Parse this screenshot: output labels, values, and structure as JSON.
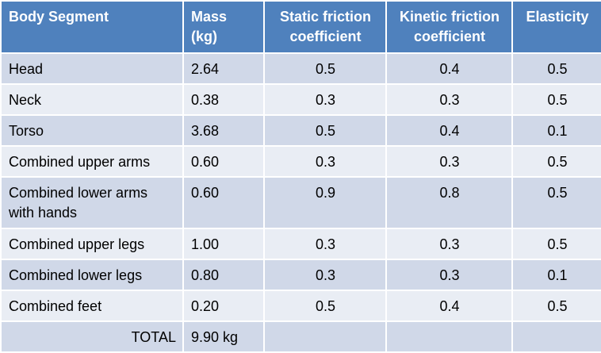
{
  "table": {
    "headers": {
      "segment": "Body Segment",
      "mass": "Mass (kg)",
      "static": "Static friction coefficient",
      "kinetic": "Kinetic friction coefficient",
      "elasticity": "Elasticity"
    },
    "rows": [
      {
        "segment": "Head",
        "mass": "2.64",
        "static": "0.5",
        "kinetic": "0.4",
        "elasticity": "0.5"
      },
      {
        "segment": "Neck",
        "mass": "0.38",
        "static": "0.3",
        "kinetic": "0.3",
        "elasticity": "0.5"
      },
      {
        "segment": "Torso",
        "mass": "3.68",
        "static": "0.5",
        "kinetic": "0.4",
        "elasticity": "0.1"
      },
      {
        "segment": "Combined upper arms",
        "mass": "0.60",
        "static": "0.3",
        "kinetic": "0.3",
        "elasticity": "0.5"
      },
      {
        "segment": "Combined lower arms with hands",
        "mass": "0.60",
        "static": "0.9",
        "kinetic": "0.8",
        "elasticity": "0.5"
      },
      {
        "segment": "Combined upper legs",
        "mass": "1.00",
        "static": "0.3",
        "kinetic": "0.3",
        "elasticity": "0.5"
      },
      {
        "segment": "Combined lower legs",
        "mass": "0.80",
        "static": "0.3",
        "kinetic": "0.3",
        "elasticity": "0.1"
      },
      {
        "segment": "Combined feet",
        "mass": "0.20",
        "static": "0.5",
        "kinetic": "0.4",
        "elasticity": "0.5"
      }
    ],
    "total": {
      "label": "TOTAL",
      "mass": "9.90 kg"
    }
  },
  "colors": {
    "header_bg": "#4f81bd",
    "row_band_dark": "#d0d8e8",
    "row_band_light": "#e9edf4",
    "header_text": "#ffffff"
  }
}
